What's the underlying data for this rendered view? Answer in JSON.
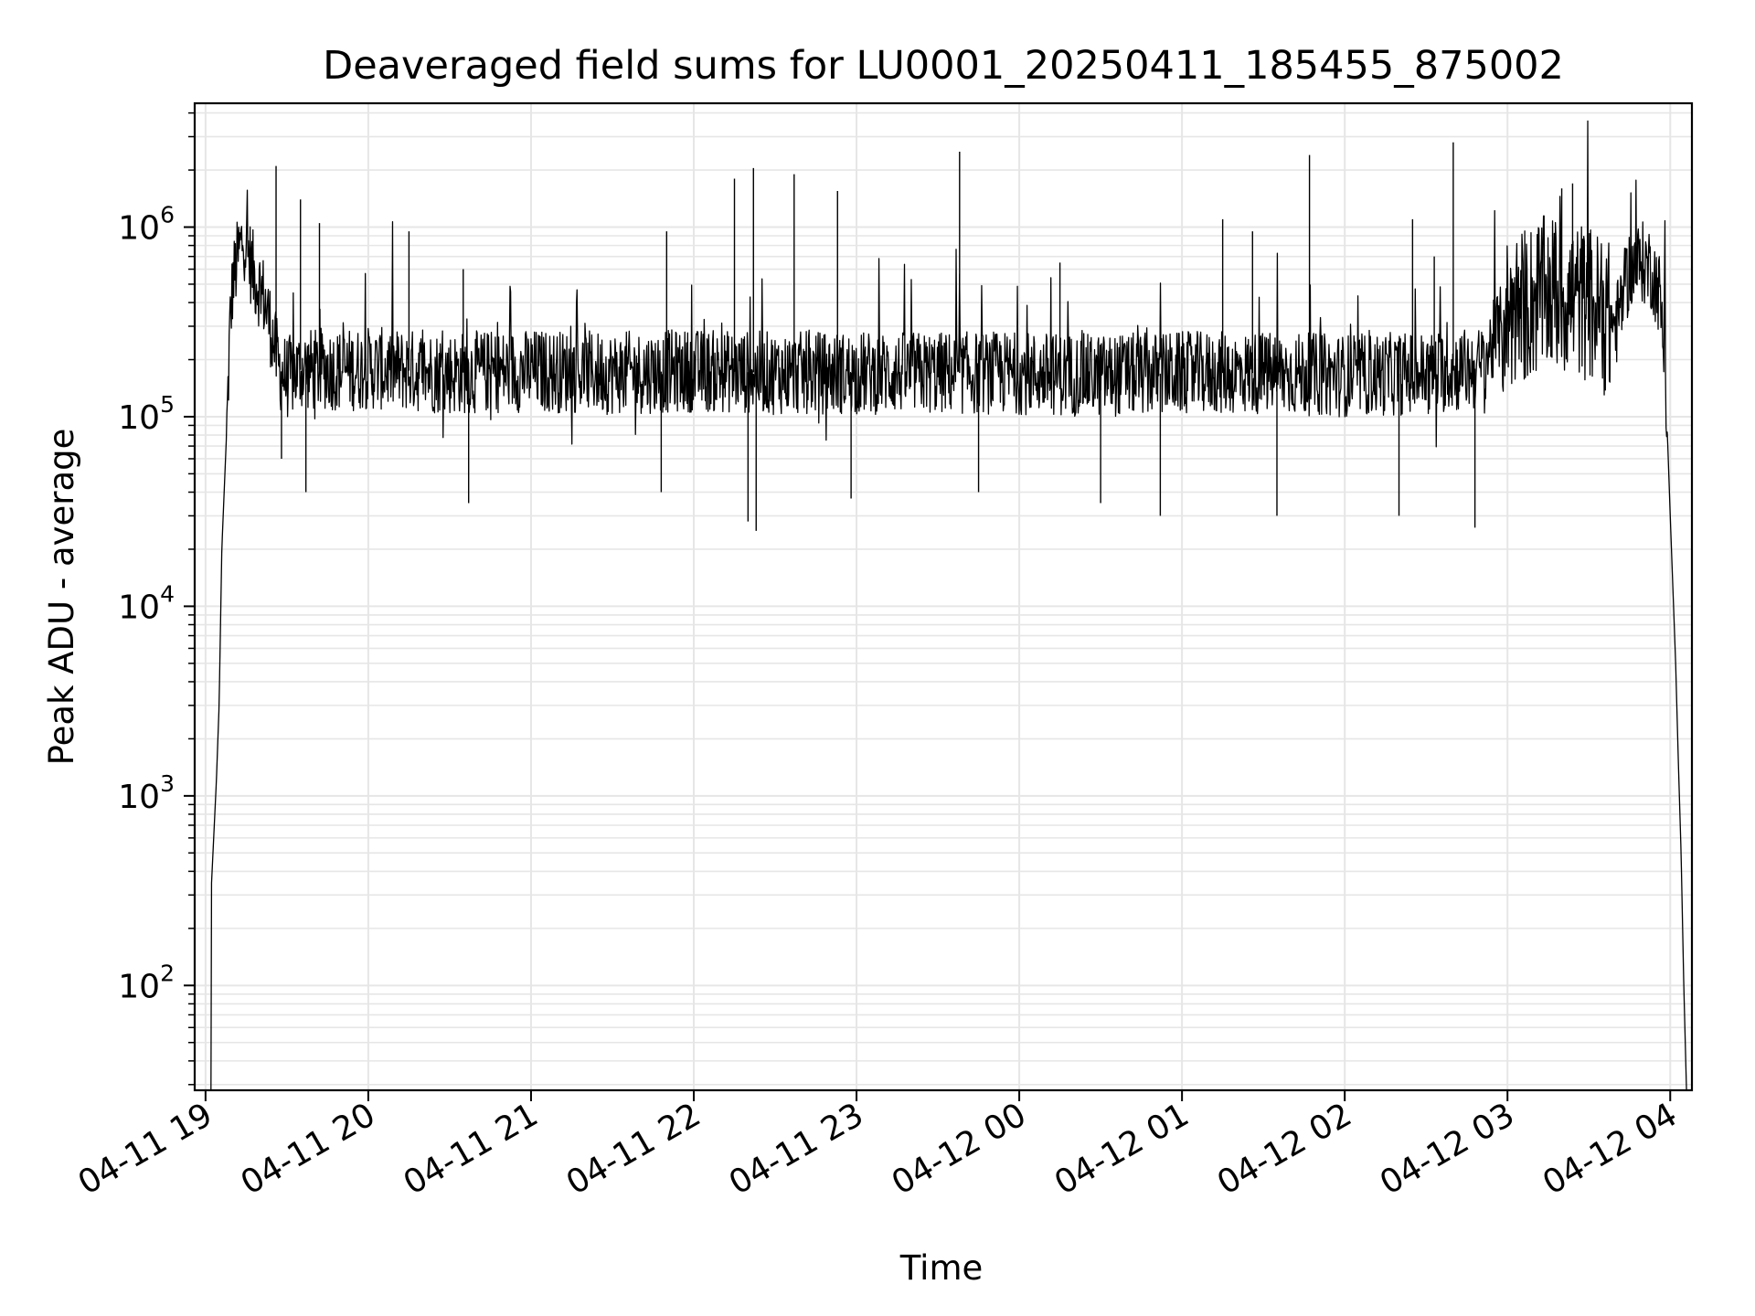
{
  "chart_data": {
    "type": "line",
    "title": "Deaveraged field sums for LU0001_20250411_185455_875002",
    "xlabel": "Time",
    "ylabel": "Peak ADU - average",
    "yscale": "log",
    "ylim": [
      28,
      4500000
    ],
    "xlim": [
      "2025-04-11 18:56",
      "2025-04-12 04:08"
    ],
    "grid": true,
    "grid_color": "#e6e6e6",
    "line_color": "#000000",
    "x_tick_labels": [
      "04-11 19",
      "04-11 20",
      "04-11 21",
      "04-11 22",
      "04-11 23",
      "04-12 00",
      "04-12 01",
      "04-12 02",
      "04-12 03",
      "04-12 04"
    ],
    "x_ticks": [
      "2025-04-11 19:00",
      "2025-04-11 20:00",
      "2025-04-11 21:00",
      "2025-04-11 22:00",
      "2025-04-11 23:00",
      "2025-04-12 00:00",
      "2025-04-12 01:00",
      "2025-04-12 02:00",
      "2025-04-12 03:00",
      "2025-04-12 04:00"
    ],
    "y_ticks": [
      {
        "base": "10",
        "exp": "2",
        "value": 100
      },
      {
        "base": "10",
        "exp": "3",
        "value": 1000
      },
      {
        "base": "10",
        "exp": "4",
        "value": 10000
      },
      {
        "base": "10",
        "exp": "5",
        "value": 100000
      },
      {
        "base": "10",
        "exp": "6",
        "value": 1000000
      }
    ],
    "series": [
      {
        "x": [
          "2025-04-11 19:02",
          "2025-04-11 19:02",
          "2025-04-11 19:03",
          "2025-04-11 19:04",
          "2025-04-11 19:05",
          "2025-04-11 19:06",
          "2025-04-11 19:08",
          "2025-04-11 19:09",
          "2025-04-11 19:10",
          "2025-04-11 19:12",
          "2025-04-11 19:14",
          "2025-04-11 19:16",
          "2025-04-11 19:18",
          "2025-04-11 19:21",
          "2025-04-11 19:24",
          "2025-04-11 19:27",
          "2025-04-11 19:30",
          "2025-04-11 19:33",
          "2025-04-11 19:36",
          "2025-04-11 19:40",
          "2025-04-11 19:45",
          "2025-04-11 19:50",
          "2025-04-11 20:00",
          "2025-04-11 20:15",
          "2025-04-11 20:30",
          "2025-04-11 21:00",
          "2025-04-11 21:30",
          "2025-04-11 22:00",
          "2025-04-11 22:30",
          "2025-04-11 23:00",
          "2025-04-11 23:30",
          "2025-04-12 00:00",
          "2025-04-12 00:30",
          "2025-04-12 01:00",
          "2025-04-12 01:30",
          "2025-04-12 02:00",
          "2025-04-12 02:30",
          "2025-04-12 02:50",
          "2025-04-12 03:00",
          "2025-04-12 03:15",
          "2025-04-12 03:30",
          "2025-04-12 03:40",
          "2025-04-12 03:45",
          "2025-04-12 03:50",
          "2025-04-12 03:53",
          "2025-04-12 03:56",
          "2025-04-12 03:58",
          "2025-04-12 04:00",
          "2025-04-12 04:02",
          "2025-04-12 04:03",
          "2025-04-12 04:04",
          "2025-04-12 04:05",
          "2025-04-12 04:06"
        ],
        "values": [
          28,
          300,
          600,
          1200,
          3000,
          20000,
          100000,
          300000,
          500000,
          700000,
          900000,
          700000,
          550000,
          450000,
          300000,
          180000,
          160000,
          170000,
          180000,
          175000,
          180000,
          175000,
          180000,
          175000,
          170000,
          175000,
          170000,
          175000,
          170000,
          170000,
          170000,
          170000,
          165000,
          170000,
          170000,
          165000,
          170000,
          180000,
          350000,
          450000,
          400000,
          300000,
          600000,
          650000,
          600000,
          450000,
          200000,
          30000,
          5000,
          1500,
          500,
          100,
          28
        ]
      }
    ],
    "spikes": [
      {
        "x": "2025-04-11 19:26",
        "y": 2100000
      },
      {
        "x": "2025-04-11 19:35",
        "y": 1400000
      },
      {
        "x": "2025-04-11 19:42",
        "y": 1050000
      },
      {
        "x": "2025-04-11 20:15",
        "y": 950000
      },
      {
        "x": "2025-04-11 20:35",
        "y": 600000
      },
      {
        "x": "2025-04-11 21:50",
        "y": 950000
      },
      {
        "x": "2025-04-11 22:15",
        "y": 1800000
      },
      {
        "x": "2025-04-11 22:22",
        "y": 2050000
      },
      {
        "x": "2025-04-11 22:37",
        "y": 1900000
      },
      {
        "x": "2025-04-11 22:53",
        "y": 1550000
      },
      {
        "x": "2025-04-11 23:38",
        "y": 2500000
      },
      {
        "x": "2025-04-12 00:15",
        "y": 650000
      },
      {
        "x": "2025-04-12 01:15",
        "y": 1100000
      },
      {
        "x": "2025-04-12 01:26",
        "y": 950000
      },
      {
        "x": "2025-04-12 01:47",
        "y": 2400000
      },
      {
        "x": "2025-04-12 02:25",
        "y": 1100000
      },
      {
        "x": "2025-04-12 02:33",
        "y": 700000
      },
      {
        "x": "2025-04-12 02:40",
        "y": 2800000
      },
      {
        "x": "2025-04-12 03:20",
        "y": 1600000
      },
      {
        "x": "2025-04-12 03:24",
        "y": 1700000
      }
    ],
    "dips": [
      {
        "x": "2025-04-11 19:28",
        "y": 60000
      },
      {
        "x": "2025-04-11 19:37",
        "y": 40000
      },
      {
        "x": "2025-04-11 20:37",
        "y": 35000
      },
      {
        "x": "2025-04-11 21:48",
        "y": 40000
      },
      {
        "x": "2025-04-11 22:20",
        "y": 28000
      },
      {
        "x": "2025-04-11 22:23",
        "y": 25000
      },
      {
        "x": "2025-04-11 22:58",
        "y": 37000
      },
      {
        "x": "2025-04-11 23:45",
        "y": 40000
      },
      {
        "x": "2025-04-12 00:30",
        "y": 35000
      },
      {
        "x": "2025-04-12 00:52",
        "y": 30000
      },
      {
        "x": "2025-04-12 01:35",
        "y": 30000
      },
      {
        "x": "2025-04-12 02:20",
        "y": 30000
      },
      {
        "x": "2025-04-12 02:48",
        "y": 26000
      }
    ]
  }
}
